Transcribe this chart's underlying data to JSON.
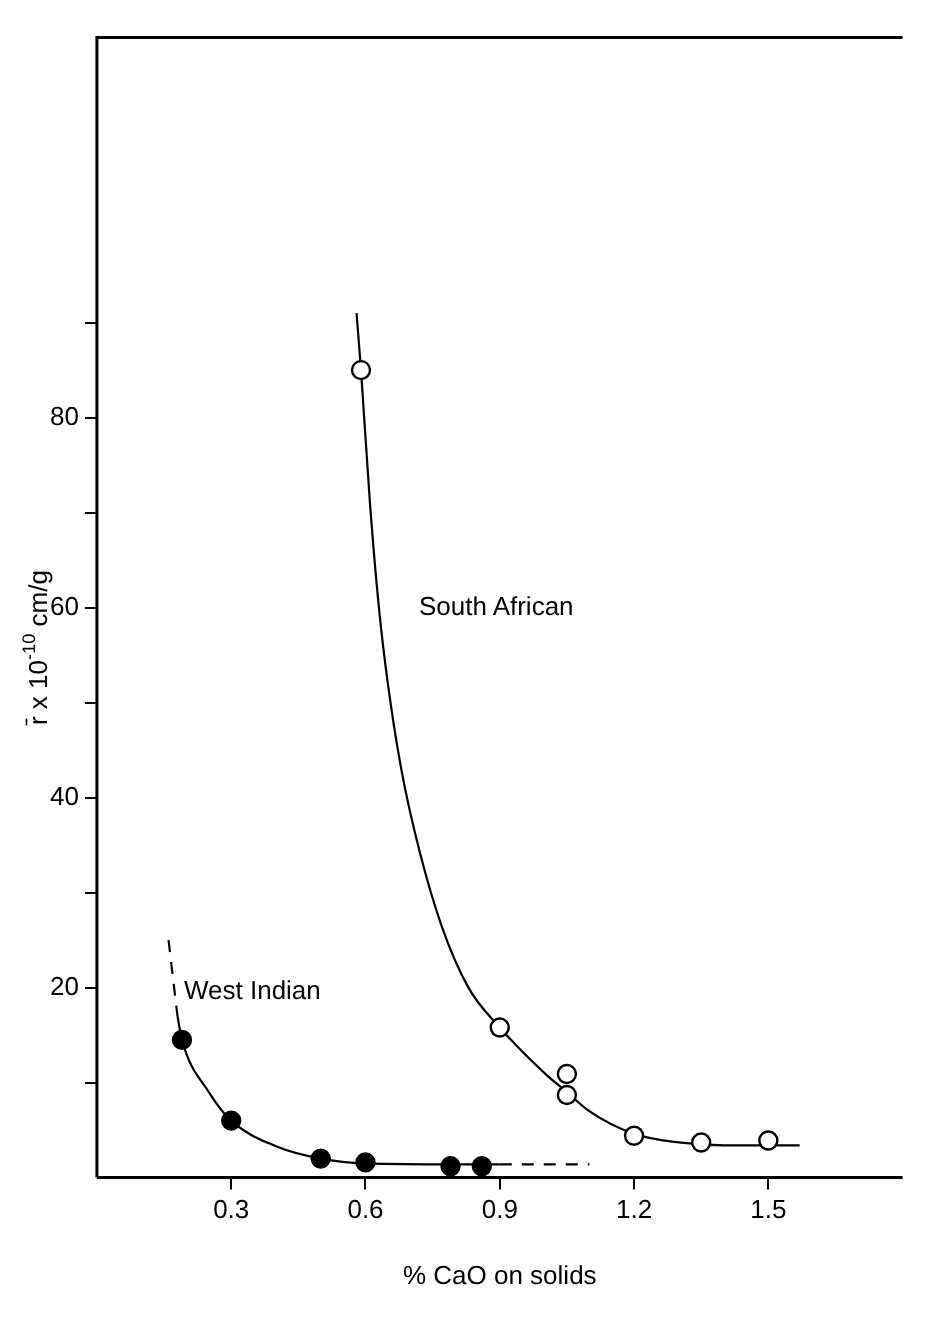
{
  "chart_data": {
    "type": "scatter",
    "xlabel": "% CaO on solids",
    "ylabel": "r̄ x 10$^{-10}$ cm/g",
    "xlim": [
      0,
      1.8
    ],
    "ylim": [
      0,
      120
    ],
    "xticks": [
      0.3,
      0.6,
      0.9,
      1.2,
      1.5
    ],
    "yticks": [
      {
        "value": 10,
        "label": null
      },
      {
        "value": 20,
        "label": "20"
      },
      {
        "value": 30,
        "label": null
      },
      {
        "value": 40,
        "label": "40"
      },
      {
        "value": 50,
        "label": null
      },
      {
        "value": 60,
        "label": "60"
      },
      {
        "value": 70,
        "label": null
      },
      {
        "value": 80,
        "label": "80"
      },
      {
        "value": 90,
        "label": null
      }
    ],
    "grid": false,
    "legend": false,
    "marker": "circle",
    "series": [
      {
        "type": "scatter",
        "name": "West Indian",
        "color": "#000000",
        "x": [
          0.19,
          0.3,
          0.5,
          0.6,
          0.79,
          0.86
        ],
        "values": [
          14.5,
          6,
          2,
          1.6,
          1.2,
          1.2
        ]
      },
      {
        "type": "scatter",
        "color": "#000000",
        "x": [
          0.59,
          0.9,
          1.05,
          1.05,
          1.2,
          1.35,
          1.5
        ],
        "values": [
          85,
          15.8,
          10.9,
          8.7,
          4.4,
          3.7,
          3.9
        ]
      },
      {
        "type": "line",
        "marker": "none",
        "line_style": "dashed",
        "color": "#000000",
        "x": [
          0.16,
          0.18
        ],
        "values": [
          25,
          17
        ]
      },
      {
        "type": "line",
        "marker": "none",
        "line_style": "solid",
        "color": "#000000",
        "x": [
          0.18,
          0.19,
          0.25,
          0.3,
          0.4,
          0.5,
          0.6,
          0.8,
          0.9
        ],
        "values": [
          17,
          14.5,
          9,
          6,
          3.3,
          2,
          1.5,
          1.4,
          1.4
        ]
      },
      {
        "type": "line",
        "marker": "none",
        "line_style": "dashed",
        "color": "#000000",
        "x": [
          0.9,
          1.1
        ],
        "values": [
          1.4,
          1.4
        ]
      },
      {
        "type": "line",
        "name": "South African",
        "marker": "none",
        "line_style": "solid",
        "color": "#000000",
        "x": [
          0.58,
          0.59,
          0.61,
          0.63,
          0.65,
          0.68,
          0.72,
          0.77,
          0.83,
          0.9,
          1.0,
          1.05,
          1.1,
          1.2,
          1.3,
          1.4,
          1.57
        ],
        "values": [
          91,
          85,
          71,
          60,
          52,
          43,
          34.5,
          26.5,
          20,
          15.8,
          11,
          9,
          7,
          4.6,
          3.7,
          3.4,
          3.4
        ]
      }
    ]
  }
}
